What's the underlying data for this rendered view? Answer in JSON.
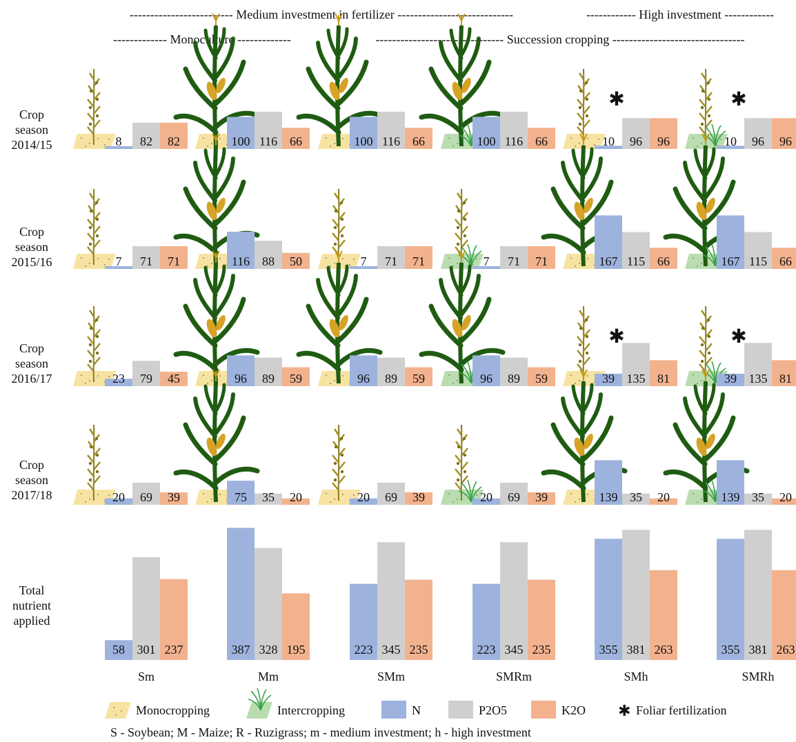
{
  "header": {
    "medium_investment": "------------------------- Medium investment in fertilizer ----------------------------",
    "high_investment": "------------ High investment ------------",
    "monoculture": "------------- Monoculture -------------",
    "succession_cropping": "------------------------------- Succession cropping --------------------------------"
  },
  "row_labels": [
    {
      "line1": "Crop",
      "line2": "season",
      "line3": "2014/15"
    },
    {
      "line1": "Crop",
      "line2": "season",
      "line3": "2015/16"
    },
    {
      "line1": "Crop",
      "line2": "season",
      "line3": "2016/17"
    },
    {
      "line1": "Crop",
      "line2": "season",
      "line3": "2017/18"
    },
    {
      "line1": "Total",
      "line2": "nutrient",
      "line3": "applied"
    }
  ],
  "legend": {
    "monocropping": "Monocropping",
    "intercropping": "Intercropping",
    "n": "N",
    "p2o5": "P2O5",
    "k2o": "K2O",
    "foliar_symbol": "✱",
    "foliar": "Foliar fertilization",
    "abbreviations": "S - Soybean; M - Maize; R - Ruzigrass; m - medium investment; h - high investment"
  },
  "chart_data": {
    "type": "bar",
    "treatments": [
      "Sm",
      "Mm",
      "SMm",
      "SMRm",
      "SMh",
      "SMRh"
    ],
    "nutrients": [
      "N",
      "P2O5",
      "K2O"
    ],
    "colors": {
      "N": "#9db3de",
      "P2O5": "#cfcfcf",
      "K2O": "#f2b28e",
      "mono_ground": "#f7e3a1",
      "inter_ground": "#b9ddb0"
    },
    "seasons": [
      {
        "name": "2014/15",
        "cells": [
          {
            "crop": "soybean",
            "ground": "mono",
            "values": [
              8,
              82,
              82
            ],
            "foliar": false
          },
          {
            "crop": "maize",
            "ground": "mono",
            "values": [
              100,
              116,
              66
            ],
            "foliar": false
          },
          {
            "crop": "maize",
            "ground": "mono",
            "values": [
              100,
              116,
              66
            ],
            "foliar": false
          },
          {
            "crop": "maize",
            "ground": "inter",
            "values": [
              100,
              116,
              66
            ],
            "foliar": false
          },
          {
            "crop": "soybean",
            "ground": "mono",
            "values": [
              10,
              96,
              96
            ],
            "foliar": true
          },
          {
            "crop": "soybean",
            "ground": "inter",
            "values": [
              10,
              96,
              96
            ],
            "foliar": true
          }
        ]
      },
      {
        "name": "2015/16",
        "cells": [
          {
            "crop": "soybean",
            "ground": "mono",
            "values": [
              7,
              71,
              71
            ],
            "foliar": false
          },
          {
            "crop": "maize",
            "ground": "mono",
            "values": [
              116,
              88,
              50
            ],
            "foliar": false
          },
          {
            "crop": "soybean",
            "ground": "mono",
            "values": [
              7,
              71,
              71
            ],
            "foliar": false
          },
          {
            "crop": "soybean",
            "ground": "inter",
            "values": [
              7,
              71,
              71
            ],
            "foliar": false
          },
          {
            "crop": "maize",
            "ground": "mono",
            "values": [
              167,
              115,
              66
            ],
            "foliar": false
          },
          {
            "crop": "maize",
            "ground": "inter",
            "values": [
              167,
              115,
              66
            ],
            "foliar": false
          }
        ]
      },
      {
        "name": "2016/17",
        "cells": [
          {
            "crop": "soybean",
            "ground": "mono",
            "values": [
              23,
              79,
              45
            ],
            "foliar": false
          },
          {
            "crop": "maize",
            "ground": "mono",
            "values": [
              96,
              89,
              59
            ],
            "foliar": false
          },
          {
            "crop": "maize",
            "ground": "mono",
            "values": [
              96,
              89,
              59
            ],
            "foliar": false
          },
          {
            "crop": "maize",
            "ground": "inter",
            "values": [
              96,
              89,
              59
            ],
            "foliar": false
          },
          {
            "crop": "soybean",
            "ground": "mono",
            "values": [
              39,
              135,
              81
            ],
            "foliar": true
          },
          {
            "crop": "soybean",
            "ground": "inter",
            "values": [
              39,
              135,
              81
            ],
            "foliar": true
          }
        ]
      },
      {
        "name": "2017/18",
        "cells": [
          {
            "crop": "soybean",
            "ground": "mono",
            "values": [
              20,
              69,
              39
            ],
            "foliar": false
          },
          {
            "crop": "maize",
            "ground": "mono",
            "values": [
              75,
              35,
              20
            ],
            "foliar": false
          },
          {
            "crop": "soybean",
            "ground": "mono",
            "values": [
              20,
              69,
              39
            ],
            "foliar": false
          },
          {
            "crop": "soybean",
            "ground": "inter",
            "values": [
              20,
              69,
              39
            ],
            "foliar": false
          },
          {
            "crop": "maize",
            "ground": "mono",
            "values": [
              139,
              35,
              20
            ],
            "foliar": false
          },
          {
            "crop": "maize",
            "ground": "inter",
            "values": [
              139,
              35,
              20
            ],
            "foliar": false
          }
        ]
      }
    ],
    "totals": [
      [
        58,
        301,
        237
      ],
      [
        387,
        328,
        195
      ],
      [
        223,
        345,
        235
      ],
      [
        223,
        345,
        235
      ],
      [
        355,
        381,
        263
      ],
      [
        355,
        381,
        263
      ]
    ]
  }
}
